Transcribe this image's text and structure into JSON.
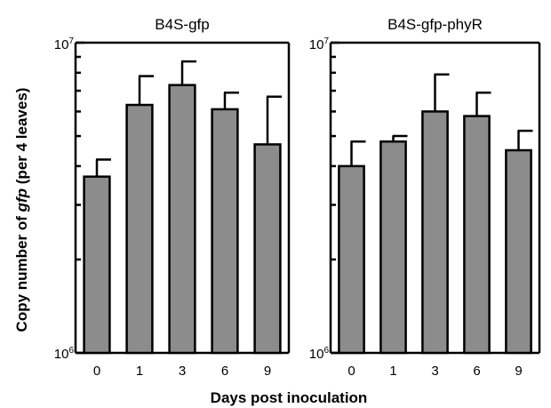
{
  "chart_data": {
    "type": "bar",
    "y_scale": "log",
    "ylim": [
      1000000,
      10000000
    ],
    "ylabel_pre": "Copy number of ",
    "ylabel_italic": "gfp",
    "ylabel_post": " (per 4 leaves)",
    "xlabel": "Days post inoculation",
    "y_tick_labels": [
      {
        "base": "10",
        "exp": "6"
      },
      {
        "base": "10",
        "exp": "7"
      }
    ],
    "categories": [
      "0",
      "1",
      "3",
      "6",
      "9"
    ],
    "panels": [
      {
        "title": "B4S-gfp",
        "values": [
          3700000,
          6300000,
          7300000,
          6100000,
          4700000
        ],
        "errors": [
          500000,
          1500000,
          1400000,
          800000,
          2000000
        ]
      },
      {
        "title": "B4S-gfp-phyR",
        "values": [
          4000000,
          4800000,
          6000000,
          5800000,
          4500000
        ],
        "errors": [
          800000,
          200000,
          1900000,
          1100000,
          700000
        ]
      }
    ]
  }
}
